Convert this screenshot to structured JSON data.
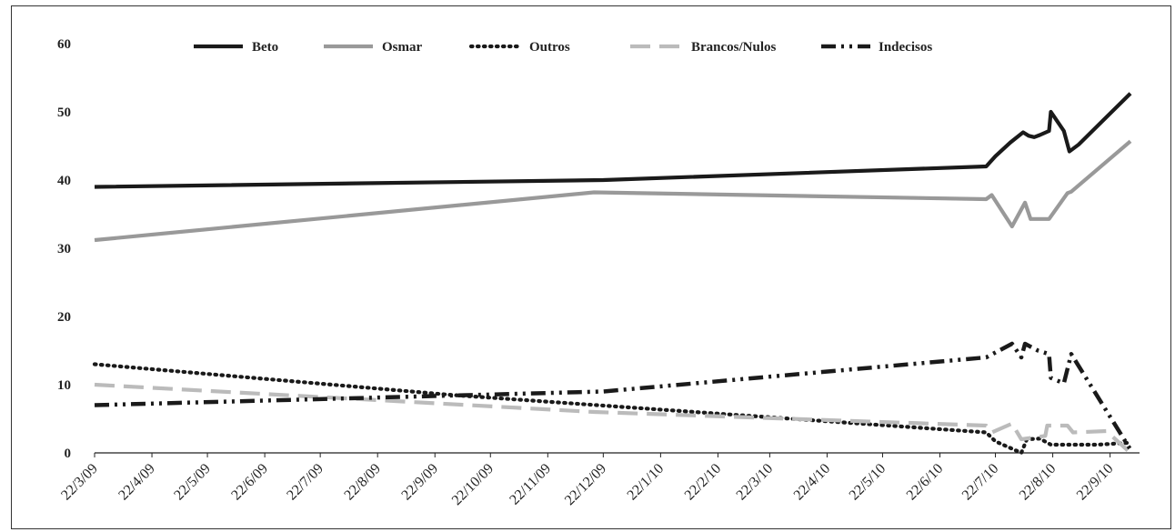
{
  "chart_data": {
    "type": "line",
    "title": "",
    "xlabel": "",
    "ylabel": "",
    "ylim": [
      0,
      60
    ],
    "yticks": [
      0,
      10,
      20,
      30,
      40,
      50,
      60
    ],
    "x_tick_labels": [
      "22/3/09",
      "22/4/09",
      "22/5/09",
      "22/6/09",
      "22/7/09",
      "22/8/09",
      "22/9/09",
      "22/10/09",
      "22/11/09",
      "22/12/09",
      "22/1/10",
      "22/2/10",
      "22/3/10",
      "22/4/10",
      "22/5/10",
      "22/6/10",
      "22/7/10",
      "22/8/10",
      "22/9/10"
    ],
    "x_tick_dates": [
      "2009-03-22",
      "2009-04-22",
      "2009-05-22",
      "2009-06-22",
      "2009-07-22",
      "2009-08-22",
      "2009-09-22",
      "2009-10-22",
      "2009-11-22",
      "2009-12-22",
      "2010-01-22",
      "2010-02-22",
      "2010-03-22",
      "2010-04-22",
      "2010-05-22",
      "2010-06-22",
      "2010-07-22",
      "2010-08-22",
      "2010-09-22"
    ],
    "xlim": [
      "2009-03-22",
      "2010-10-03"
    ],
    "grid": false,
    "legend_position": "top",
    "series": [
      {
        "name": "Beto",
        "style": "solid",
        "color": "#1a1a1a",
        "points": [
          [
            "2009-03-22",
            39
          ],
          [
            "2009-12-22",
            40
          ],
          [
            "2010-07-17",
            42
          ],
          [
            "2010-07-22",
            43.5
          ],
          [
            "2010-07-30",
            45.5
          ],
          [
            "2010-08-06",
            47
          ],
          [
            "2010-08-09",
            46.5
          ],
          [
            "2010-08-12",
            46.3
          ],
          [
            "2010-08-15",
            46.6
          ],
          [
            "2010-08-20",
            47.2
          ],
          [
            "2010-08-21",
            50
          ],
          [
            "2010-08-28",
            47.2
          ],
          [
            "2010-08-31",
            44.2
          ],
          [
            "2010-09-05",
            45.2
          ],
          [
            "2010-10-03",
            52.7
          ]
        ]
      },
      {
        "name": "Osmar",
        "style": "solid",
        "color": "#999999",
        "points": [
          [
            "2009-03-22",
            31.2
          ],
          [
            "2009-12-17",
            38.2
          ],
          [
            "2010-07-17",
            37.2
          ],
          [
            "2010-07-20",
            37.8
          ],
          [
            "2010-07-31",
            33.2
          ],
          [
            "2010-08-07",
            36.7
          ],
          [
            "2010-08-10",
            34.3
          ],
          [
            "2010-08-20",
            34.3
          ],
          [
            "2010-08-30",
            38.1
          ],
          [
            "2010-09-01",
            38.3
          ],
          [
            "2010-10-03",
            45.7
          ]
        ]
      },
      {
        "name": "Outros",
        "style": "dotted",
        "color": "#1a1a1a",
        "points": [
          [
            "2009-03-22",
            13
          ],
          [
            "2009-10-01",
            8.5
          ],
          [
            "2010-07-17",
            3
          ],
          [
            "2010-07-22",
            1.7
          ],
          [
            "2010-08-05",
            0
          ],
          [
            "2010-08-08",
            2
          ],
          [
            "2010-08-15",
            2.1
          ],
          [
            "2010-08-21",
            1.2
          ],
          [
            "2010-09-15",
            1.2
          ],
          [
            "2010-10-03",
            1.5
          ]
        ]
      },
      {
        "name": "Brancos/Nulos",
        "style": "dashed",
        "color": "#bbbbbb",
        "points": [
          [
            "2009-03-22",
            10
          ],
          [
            "2009-12-17",
            6
          ],
          [
            "2010-07-17",
            4
          ],
          [
            "2010-07-20",
            3
          ],
          [
            "2010-07-31",
            4.3
          ],
          [
            "2010-08-05",
            2
          ],
          [
            "2010-08-18",
            2.5
          ],
          [
            "2010-08-19",
            4
          ],
          [
            "2010-08-30",
            4
          ],
          [
            "2010-09-02",
            3
          ],
          [
            "2010-09-20",
            3.2
          ],
          [
            "2010-10-03",
            0
          ]
        ]
      },
      {
        "name": "Indecisos",
        "style": "dashdot",
        "color": "#1a1a1a",
        "points": [
          [
            "2009-03-22",
            7
          ],
          [
            "2009-12-22",
            9
          ],
          [
            "2010-07-17",
            14
          ],
          [
            "2010-07-24",
            15
          ],
          [
            "2010-07-31",
            16
          ],
          [
            "2010-08-05",
            14
          ],
          [
            "2010-08-07",
            16
          ],
          [
            "2010-08-14",
            15
          ],
          [
            "2010-08-20",
            14.5
          ],
          [
            "2010-08-21",
            11
          ],
          [
            "2010-08-28",
            10.2
          ],
          [
            "2010-09-01",
            14.5
          ],
          [
            "2010-10-03",
            0.5
          ]
        ]
      }
    ]
  }
}
